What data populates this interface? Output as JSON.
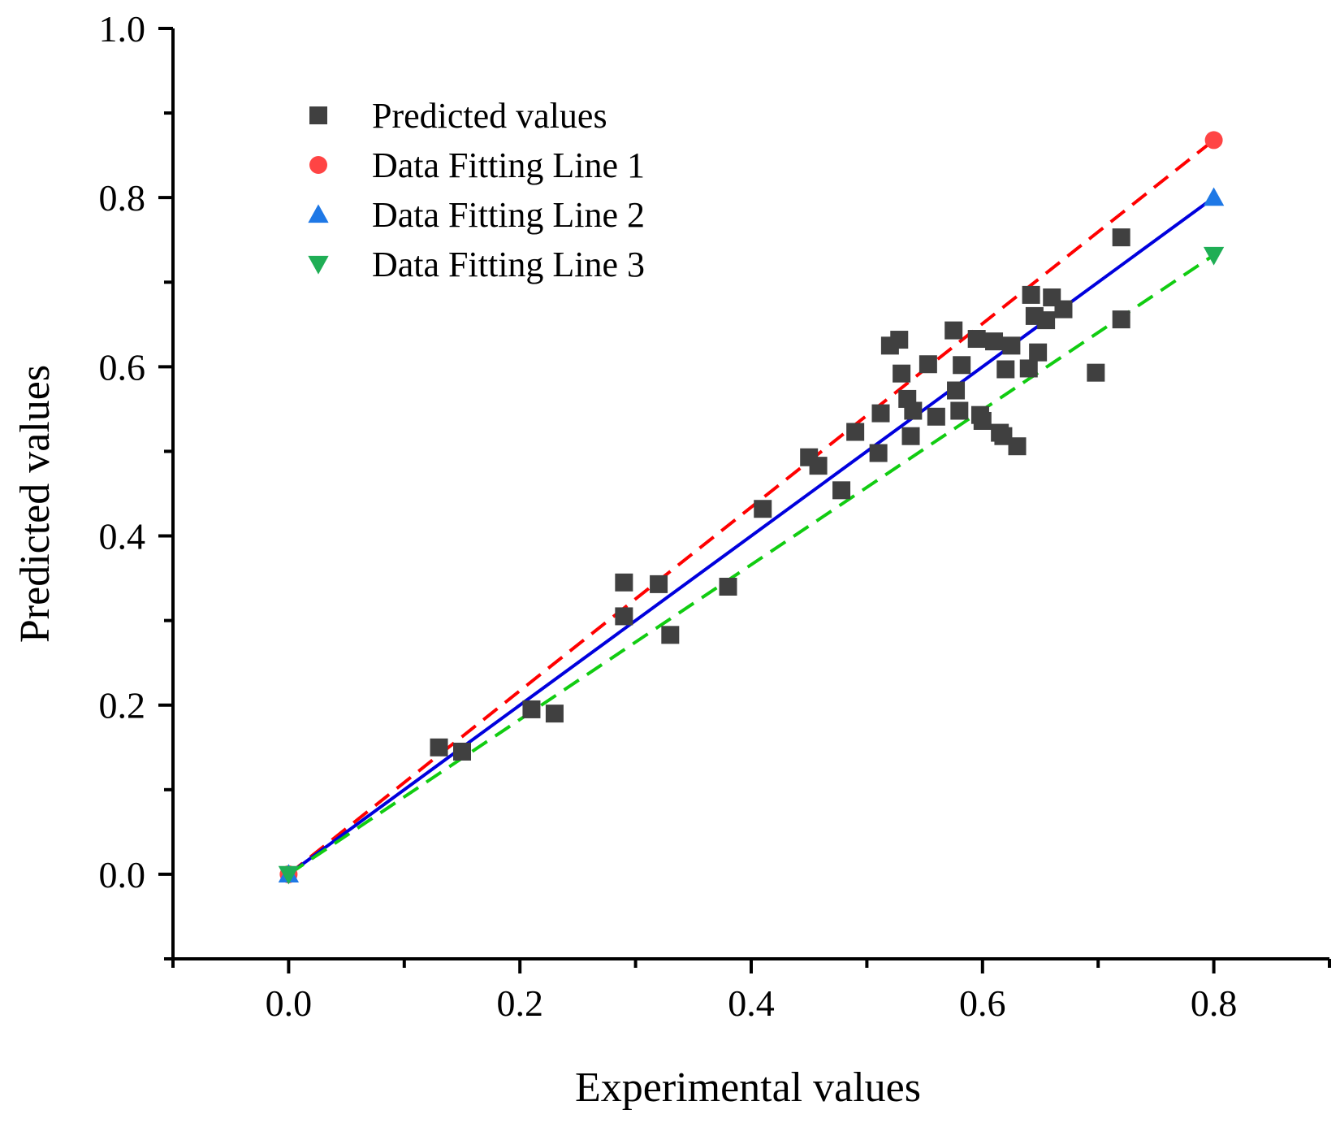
{
  "chart_data": {
    "type": "scatter",
    "title": "",
    "xlabel": "Experimental values",
    "ylabel": "Predicted values",
    "xlim": [
      -0.1,
      0.9
    ],
    "ylim": [
      -0.1,
      1.0
    ],
    "x_ticks": [
      0.0,
      0.2,
      0.4,
      0.6,
      0.8
    ],
    "x_tick_labels": [
      "0.0",
      "0.2",
      "0.4",
      "0.6",
      "0.8"
    ],
    "y_ticks": [
      0.0,
      0.2,
      0.4,
      0.6,
      0.8,
      1.0
    ],
    "y_tick_labels": [
      "0.0",
      "0.2",
      "0.4",
      "0.6",
      "0.8",
      "1.0"
    ],
    "grid": false,
    "legend_position": "top-left",
    "series": [
      {
        "name": "Predicted values",
        "marker": "square",
        "color": "#404040",
        "points": [
          [
            0.13,
            0.15
          ],
          [
            0.15,
            0.145
          ],
          [
            0.21,
            0.195
          ],
          [
            0.23,
            0.19
          ],
          [
            0.29,
            0.345
          ],
          [
            0.29,
            0.305
          ],
          [
            0.32,
            0.343
          ],
          [
            0.33,
            0.283
          ],
          [
            0.38,
            0.34
          ],
          [
            0.41,
            0.432
          ],
          [
            0.45,
            0.493
          ],
          [
            0.458,
            0.483
          ],
          [
            0.478,
            0.454
          ],
          [
            0.49,
            0.523
          ],
          [
            0.51,
            0.498
          ],
          [
            0.512,
            0.545
          ],
          [
            0.52,
            0.625
          ],
          [
            0.528,
            0.632
          ],
          [
            0.53,
            0.592
          ],
          [
            0.535,
            0.562
          ],
          [
            0.538,
            0.518
          ],
          [
            0.54,
            0.548
          ],
          [
            0.553,
            0.603
          ],
          [
            0.56,
            0.541
          ],
          [
            0.575,
            0.643
          ],
          [
            0.577,
            0.572
          ],
          [
            0.58,
            0.548
          ],
          [
            0.582,
            0.602
          ],
          [
            0.595,
            0.633
          ],
          [
            0.598,
            0.543
          ],
          [
            0.6,
            0.536
          ],
          [
            0.61,
            0.63
          ],
          [
            0.615,
            0.522
          ],
          [
            0.618,
            0.518
          ],
          [
            0.62,
            0.597
          ],
          [
            0.625,
            0.625
          ],
          [
            0.63,
            0.506
          ],
          [
            0.64,
            0.598
          ],
          [
            0.642,
            0.685
          ],
          [
            0.645,
            0.66
          ],
          [
            0.648,
            0.617
          ],
          [
            0.655,
            0.655
          ],
          [
            0.66,
            0.682
          ],
          [
            0.67,
            0.668
          ],
          [
            0.698,
            0.593
          ],
          [
            0.72,
            0.753
          ],
          [
            0.72,
            0.656
          ]
        ]
      },
      {
        "name": "Data Fitting Line 1",
        "marker": "circle",
        "color": "#ff4444",
        "line_color": "#ff0000",
        "line_style": "dashed",
        "points": [
          [
            0.0,
            0.0
          ],
          [
            0.8,
            0.868
          ]
        ]
      },
      {
        "name": "Data Fitting Line 2",
        "marker": "triangle-up",
        "color": "#1e78e6",
        "line_color": "#0000dd",
        "line_style": "solid",
        "points": [
          [
            0.0,
            0.0
          ],
          [
            0.8,
            0.8
          ]
        ]
      },
      {
        "name": "Data Fitting Line 3",
        "marker": "triangle-down",
        "color": "#1fae55",
        "line_color": "#11cc11",
        "line_style": "dashed",
        "points": [
          [
            0.0,
            0.0
          ],
          [
            0.8,
            0.732
          ]
        ]
      }
    ]
  }
}
